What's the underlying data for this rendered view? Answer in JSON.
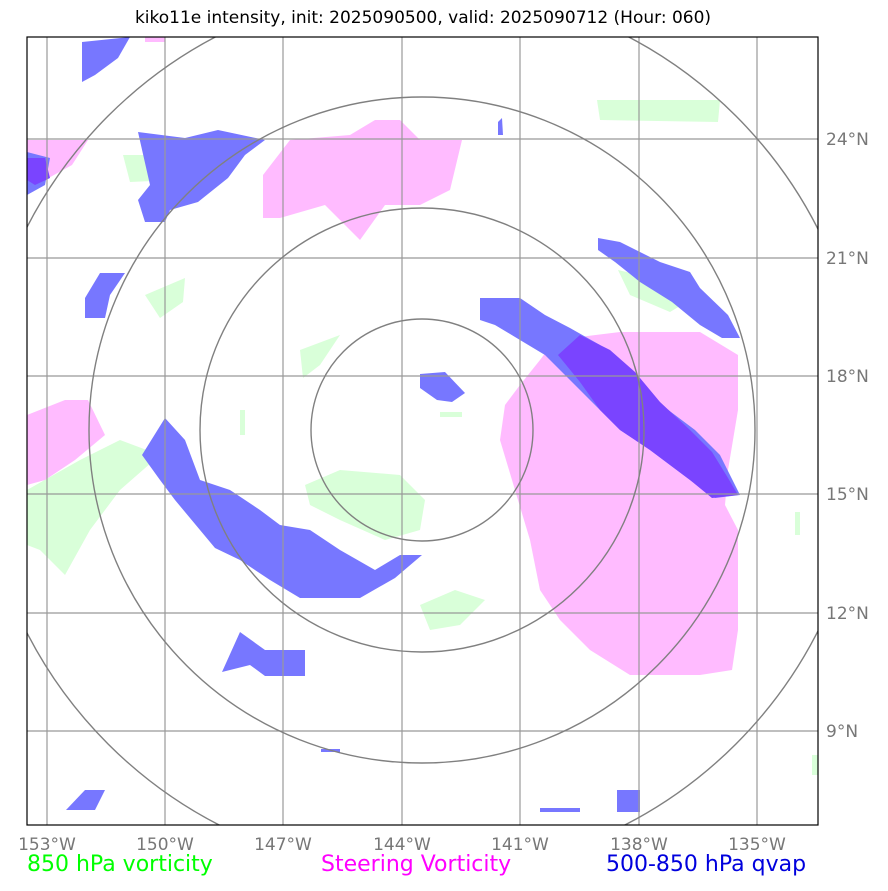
{
  "title": "kiko11e intensity, init: 2025090500, valid: 2025090712 (Hour: 060)",
  "lon_ticks": [
    "153°W",
    "150°W",
    "147°W",
    "144°W",
    "141°W",
    "138°W",
    "135°W"
  ],
  "lat_ticks": [
    "24°N",
    "21°N",
    "18°N",
    "15°N",
    "12°N",
    "9°N"
  ],
  "legend": [
    {
      "label": "850 hPa vorticity",
      "color": "#00ff00"
    },
    {
      "label": "Steering Vorticity",
      "color": "#ff00ff"
    },
    {
      "label": "500-850 hPa qvap",
      "color": "#0000dd"
    }
  ],
  "colors": {
    "vorticity_850": "#d9ffd9",
    "steering": "#ffbbff",
    "qvap": "#7777ff",
    "qvap_overlap": "#7a44ff",
    "gridlines": "#999999",
    "range_rings": "#808080"
  }
}
